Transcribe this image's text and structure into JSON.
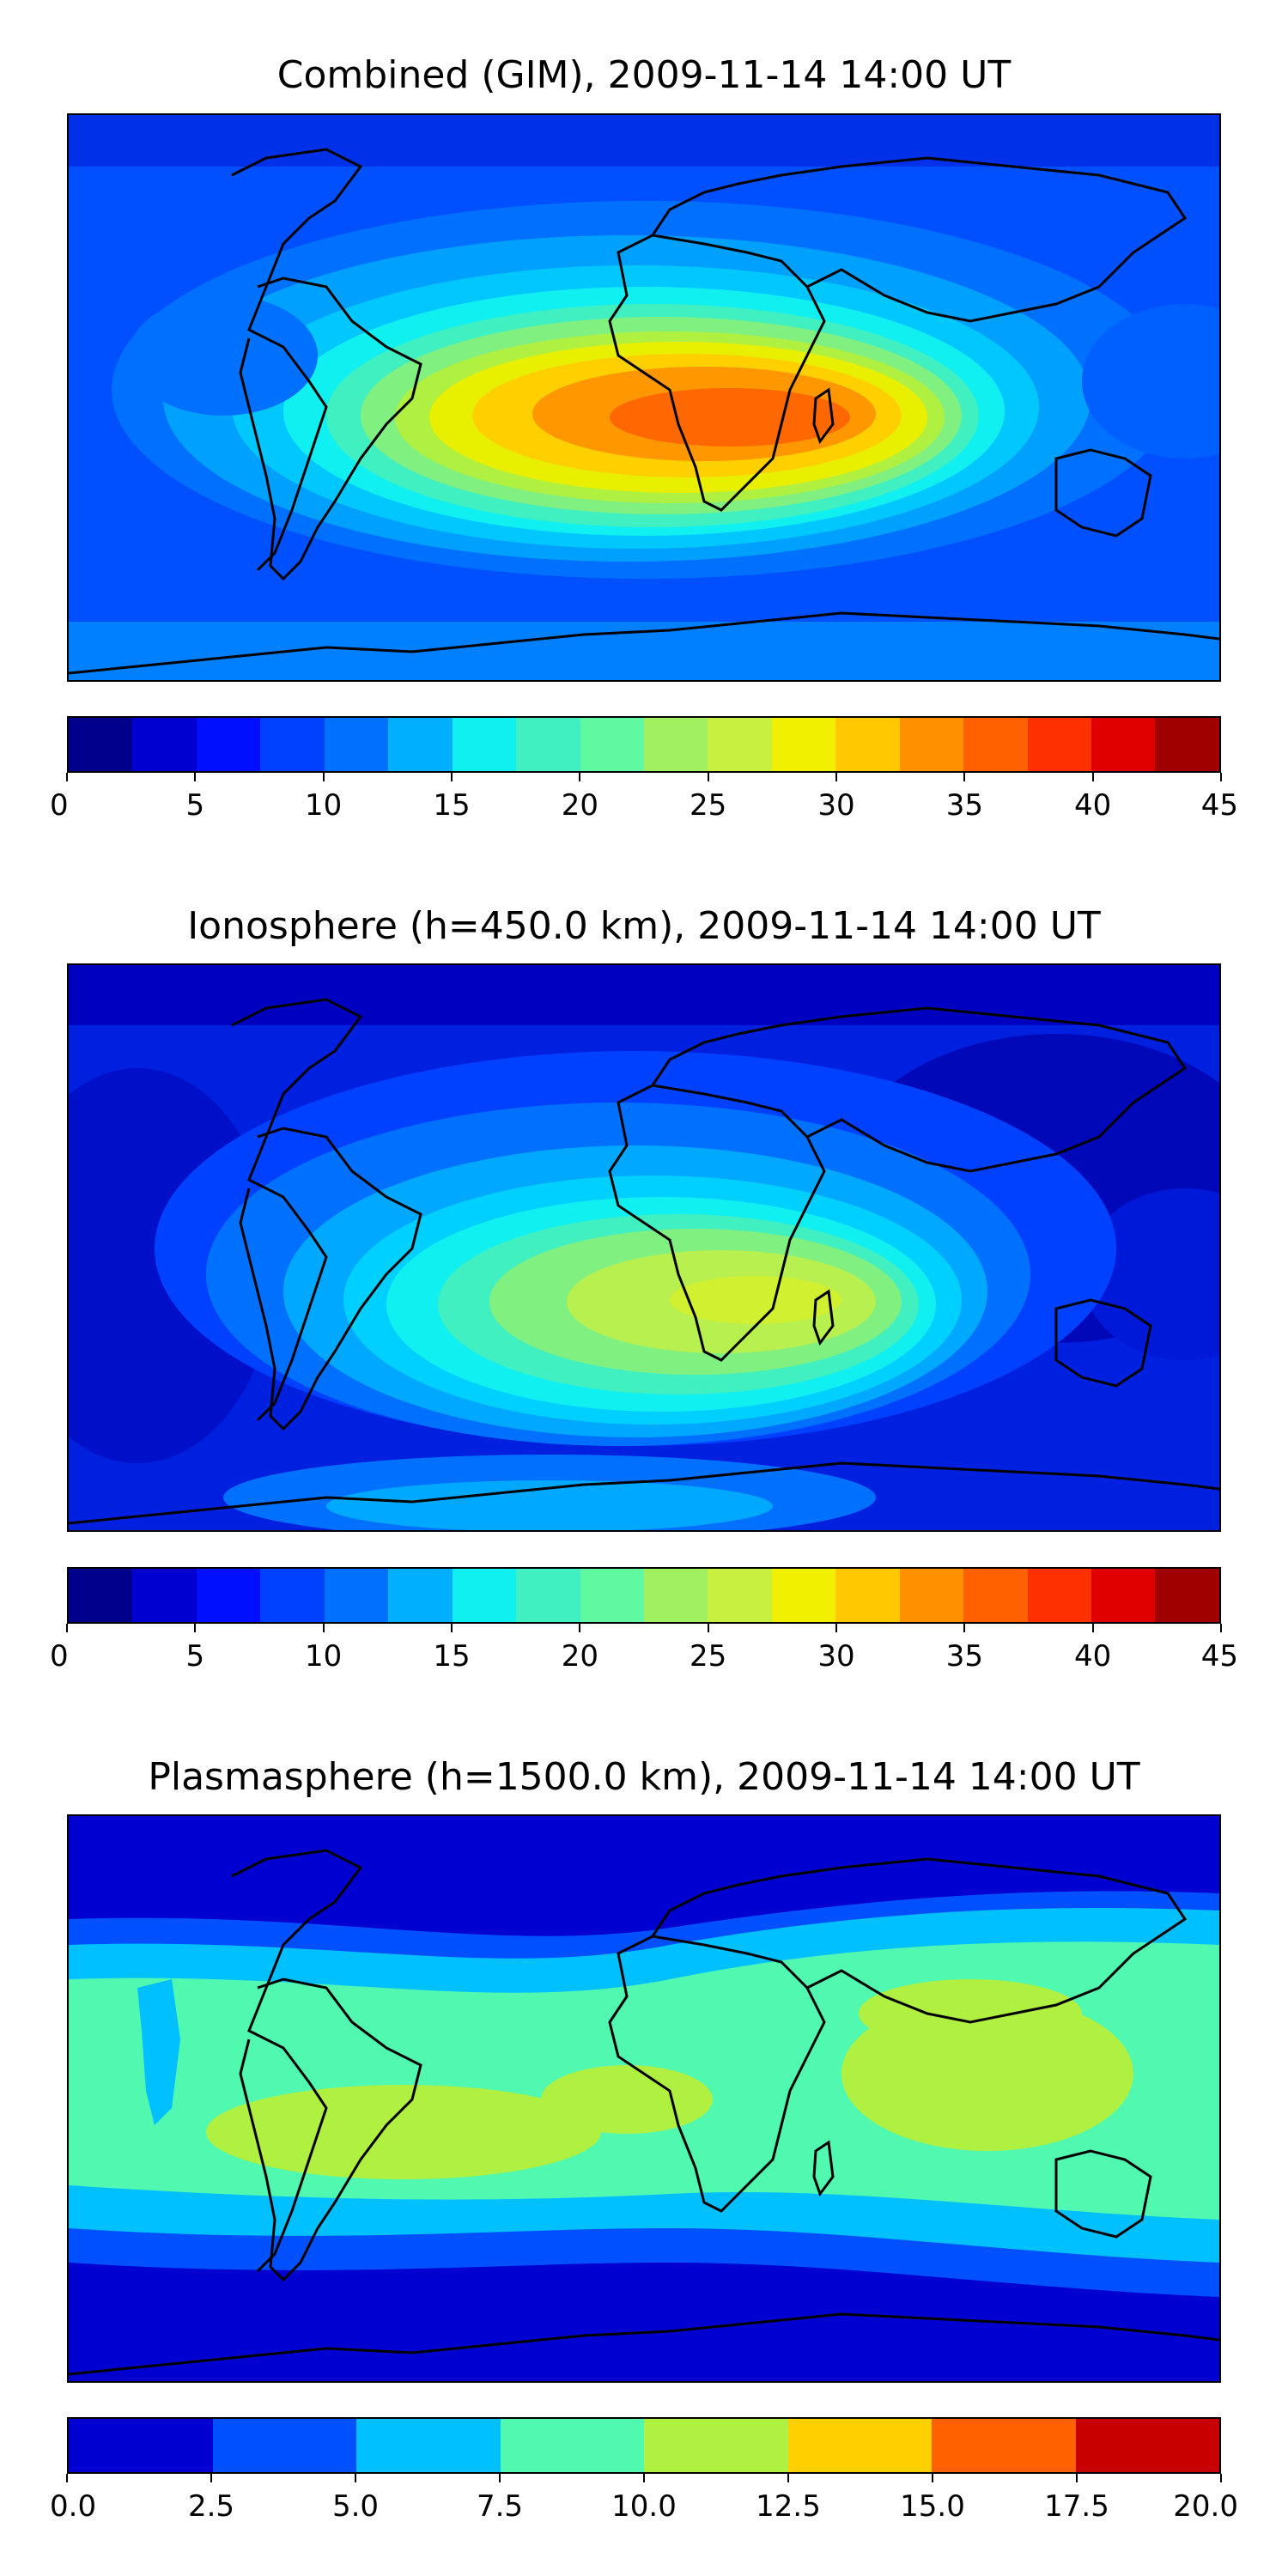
{
  "panels": [
    {
      "title": "Combined (GIM), 2009-11-14 14:00 UT",
      "colorbar": {
        "ticks": [
          "0",
          "5",
          "10",
          "15",
          "20",
          "25",
          "30",
          "35",
          "40",
          "45"
        ],
        "colors": [
          "#00008c",
          "#0000d0",
          "#0010ff",
          "#0040ff",
          "#0070ff",
          "#00b0ff",
          "#10f0f0",
          "#40f0c0",
          "#60f8a0",
          "#a0f060",
          "#c8f040",
          "#f0f000",
          "#ffc800",
          "#ff9000",
          "#ff6000",
          "#ff3000",
          "#e00000",
          "#a00000"
        ]
      }
    },
    {
      "title": "Ionosphere  (h=450.0 km), 2009-11-14 14:00 UT",
      "colorbar": {
        "ticks": [
          "0",
          "5",
          "10",
          "15",
          "20",
          "25",
          "30",
          "35",
          "40",
          "45"
        ],
        "colors": [
          "#00008c",
          "#0000d0",
          "#0010ff",
          "#0040ff",
          "#0070ff",
          "#00b0ff",
          "#10f0f0",
          "#40f0c0",
          "#60f8a0",
          "#a0f060",
          "#c8f040",
          "#f0f000",
          "#ffc800",
          "#ff9000",
          "#ff6000",
          "#ff3000",
          "#e00000",
          "#a00000"
        ]
      }
    },
    {
      "title": "Plasmasphere (h=1500.0 km), 2009-11-14 14:00 UT",
      "colorbar": {
        "ticks": [
          "0.0",
          "2.5",
          "5.0",
          "7.5",
          "10.0",
          "12.5",
          "15.0",
          "17.5",
          "20.0"
        ],
        "colors": [
          "#0000d0",
          "#0050ff",
          "#00c0ff",
          "#50f8b0",
          "#b0f040",
          "#ffd000",
          "#ff6000",
          "#c80000"
        ]
      }
    }
  ]
}
